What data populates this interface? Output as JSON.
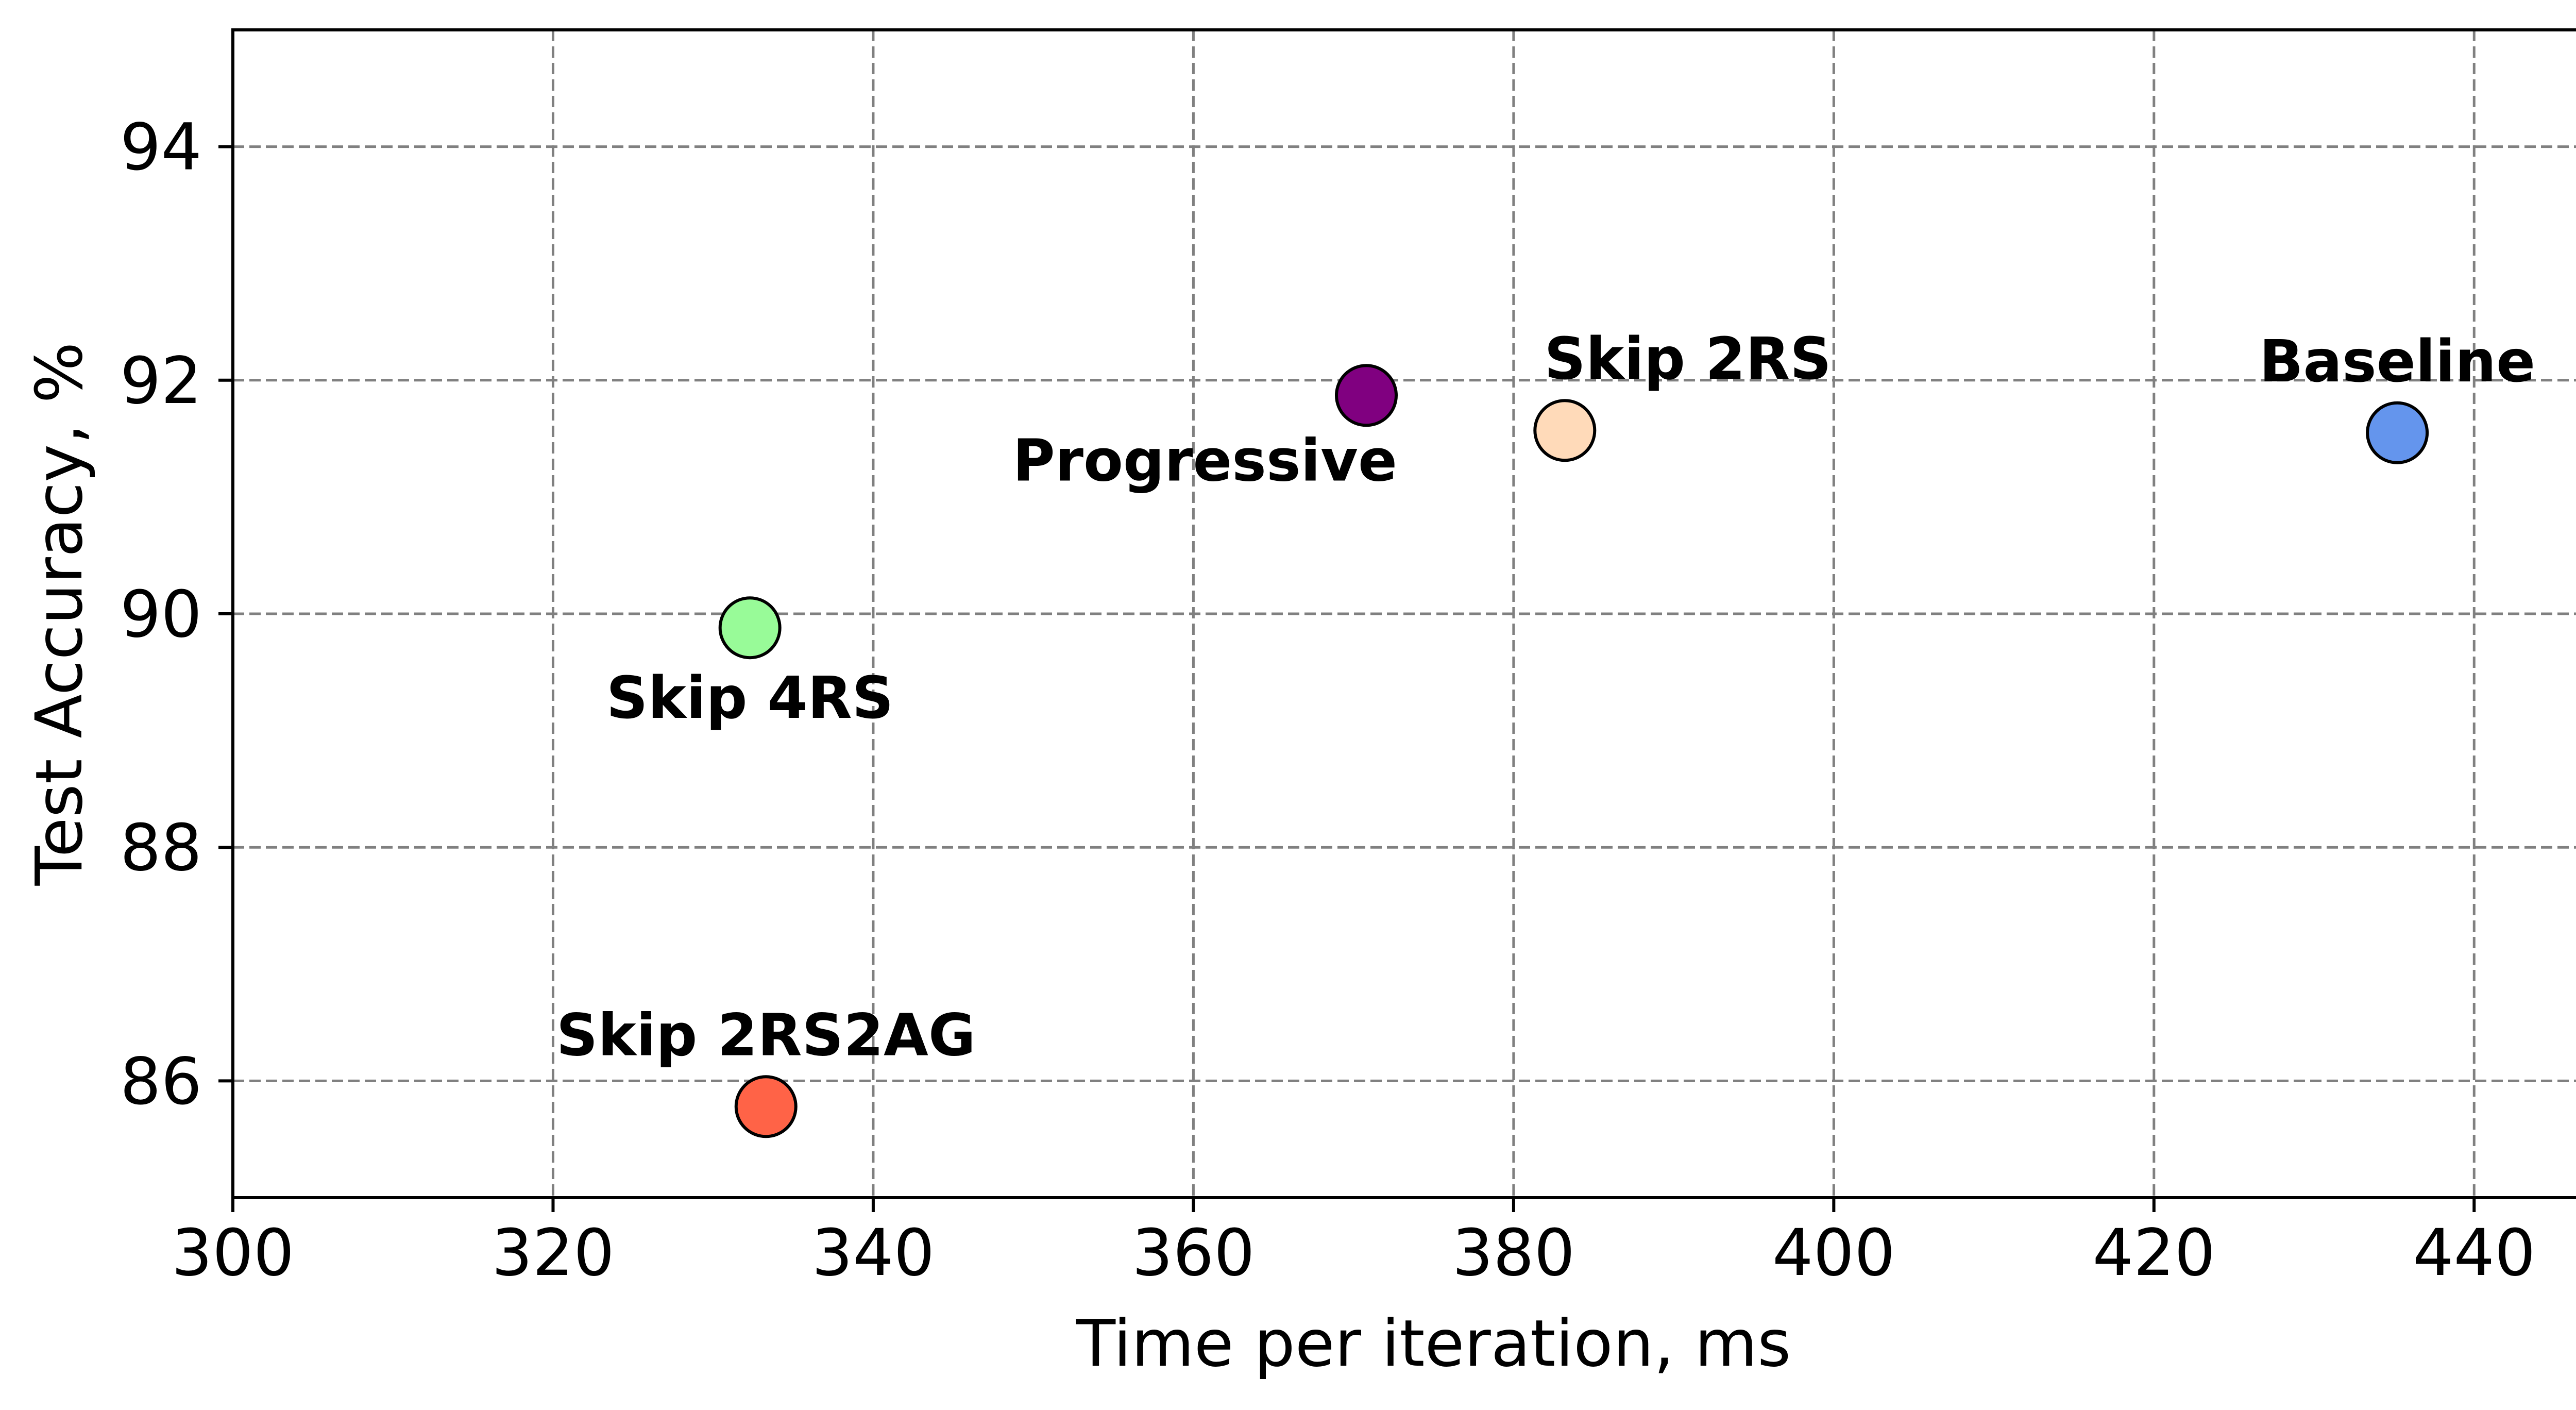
{
  "chart_data": {
    "type": "scatter",
    "title": "",
    "xlabel": "Time per iteration, ms",
    "ylabel": "Test Accuracy, %",
    "xlim": [
      300,
      450
    ],
    "ylim": [
      85,
      95
    ],
    "xticks": [
      300,
      320,
      340,
      360,
      380,
      400,
      420,
      440
    ],
    "yticks": [
      86,
      88,
      90,
      92,
      94
    ],
    "grid": true,
    "points": [
      {
        "label": "Baseline",
        "x": 435.2,
        "y": 91.55,
        "color": "#6495ED",
        "label_pos": "above"
      },
      {
        "label": "Skip 2RS",
        "x": 383.2,
        "y": 91.57,
        "color": "#FFDAB9",
        "label_pos": "above-right"
      },
      {
        "label": "Progressive",
        "x": 370.8,
        "y": 91.87,
        "color": "#800080",
        "label_pos": "below-left"
      },
      {
        "label": "Skip 4RS",
        "x": 332.3,
        "y": 89.88,
        "color": "#98FB98",
        "label_pos": "below"
      },
      {
        "label": "Skip 2RS2AG",
        "x": 333.3,
        "y": 85.78,
        "color": "#FF6347",
        "label_pos": "above"
      }
    ]
  }
}
